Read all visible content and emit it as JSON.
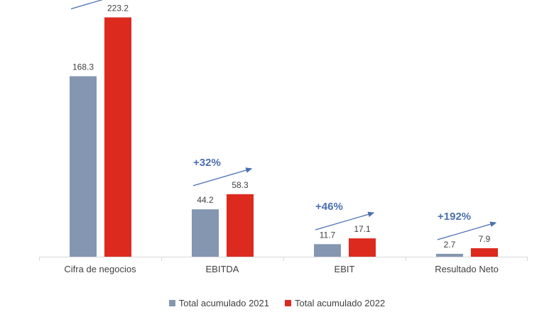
{
  "chart_data": {
    "type": "bar",
    "title": "",
    "xlabel": "",
    "ylabel": "",
    "categories": [
      "Cifra de negocios",
      "EBITDA",
      "EBIT",
      "Resultado Neto"
    ],
    "series": [
      {
        "name": "Total acumulado 2021",
        "color": "#8496b0",
        "values": [
          168.3,
          44.2,
          11.7,
          2.7
        ],
        "labels": [
          "168.3",
          "44.2",
          "11.7",
          "2.7"
        ]
      },
      {
        "name": "Total acumulado 2022",
        "color": "#dc2a1f",
        "values": [
          223.2,
          58.3,
          17.1,
          7.9
        ],
        "labels": [
          "223.2",
          "58.3",
          "17.1",
          "7.9"
        ]
      }
    ],
    "annotations": [
      "",
      "+32%",
      "+46%",
      "+192%"
    ],
    "annotation_color": "#4a6fb0",
    "axis_color": "#d9d9d9",
    "grid": false,
    "legend_position": "bottom"
  }
}
